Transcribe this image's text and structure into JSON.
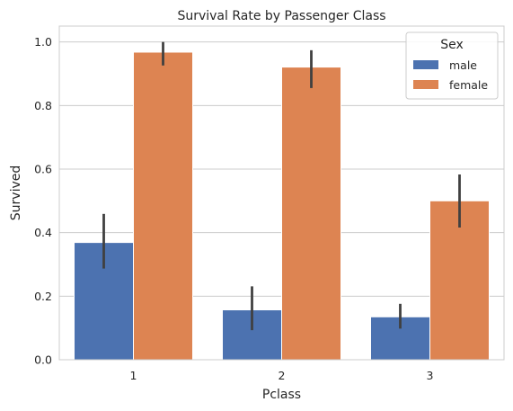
{
  "chart_data": {
    "type": "bar",
    "title": "Survival Rate by Passenger Class",
    "xlabel": "Pclass",
    "ylabel": "Survived",
    "categories": [
      "1",
      "2",
      "3"
    ],
    "ylim": [
      0,
      1.05
    ],
    "yticks": [
      "0.0",
      "0.2",
      "0.4",
      "0.6",
      "0.8",
      "1.0"
    ],
    "grid": true,
    "legend": {
      "title": "Sex",
      "placement": "top-right"
    },
    "series": [
      {
        "name": "male",
        "color": "#4c72b0",
        "values": [
          0.369,
          0.157,
          0.135
        ],
        "ci_low": [
          0.287,
          0.093,
          0.098
        ],
        "ci_high": [
          0.459,
          0.231,
          0.176
        ]
      },
      {
        "name": "female",
        "color": "#dd8452",
        "values": [
          0.968,
          0.921,
          0.5
        ],
        "ci_low": [
          0.926,
          0.855,
          0.416
        ],
        "ci_high": [
          1.0,
          0.974,
          0.583
        ]
      }
    ]
  }
}
